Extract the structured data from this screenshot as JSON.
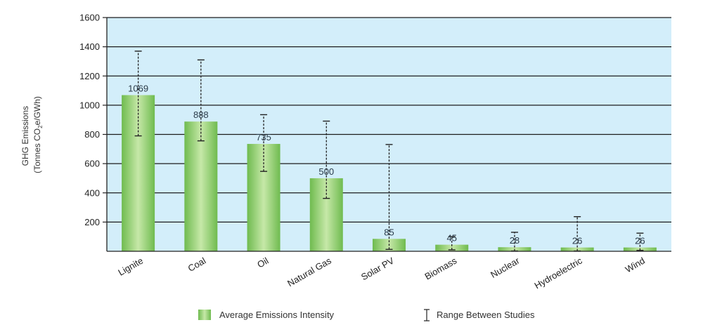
{
  "chart_data": {
    "type": "bar",
    "title": "",
    "ylabel_line1": "GHG Emissions",
    "ylabel_line2_prefix": "(Tonnes CO",
    "ylabel_line2_sub": "2",
    "ylabel_line2_suffix": "e/GWh)",
    "xlabel": "",
    "ylim": [
      0,
      1600
    ],
    "yticks": [
      200,
      400,
      600,
      800,
      1000,
      1200,
      1400,
      1600
    ],
    "ytick_labels": [
      "200",
      "400",
      "600",
      "800",
      "1000",
      "1200",
      "1400",
      "1600"
    ],
    "grid": true,
    "categories": [
      "Lignite",
      "Coal",
      "Oil",
      "Natural Gas",
      "Solar PV",
      "Biomass",
      "Nuclear",
      "Hydroelectric",
      "Wind"
    ],
    "values": [
      1069,
      888,
      735,
      500,
      85,
      45,
      28,
      26,
      26
    ],
    "value_labels": [
      "1069",
      "888",
      "735",
      "500",
      "85",
      "45",
      "28",
      "26",
      "26"
    ],
    "ranges": [
      [
        790,
        1370
      ],
      [
        756,
        1310
      ],
      [
        547,
        935
      ],
      [
        362,
        891
      ],
      [
        13,
        731
      ],
      [
        10,
        101
      ],
      [
        2,
        130
      ],
      [
        2,
        237
      ],
      [
        6,
        124
      ]
    ],
    "legend": {
      "placement": "bottom-center",
      "bar_label": "Average Emissions Intensity",
      "range_label": "Range Between Studies"
    },
    "colors": {
      "plot_bg": "#d3eefa",
      "bar_light": "#b8e09a",
      "bar_dark": "#6fbb4f",
      "gridline": "#1c1c1c",
      "errorbar": "#222222"
    }
  }
}
